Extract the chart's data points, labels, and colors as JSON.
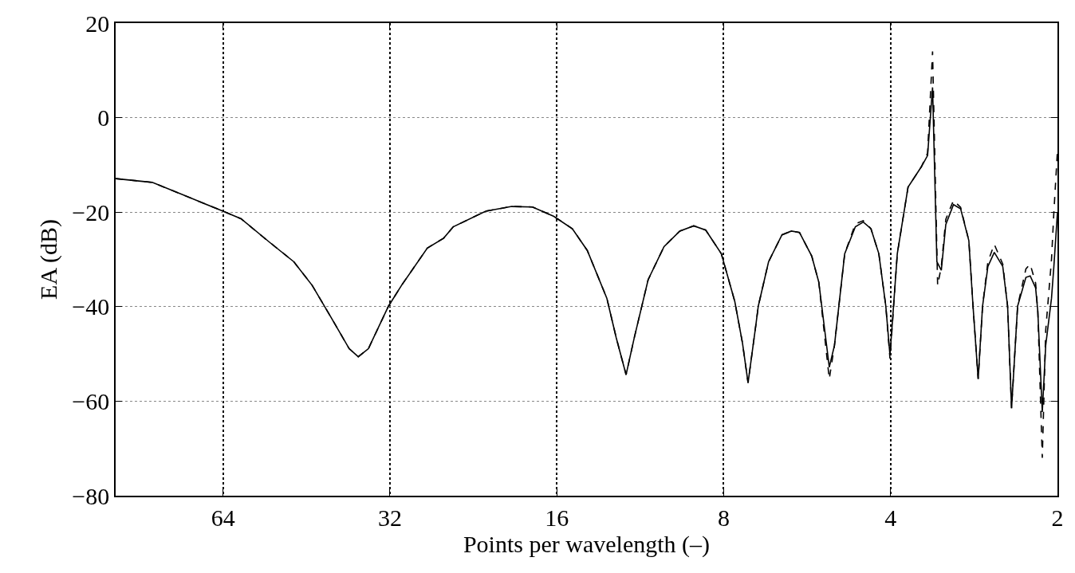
{
  "chart_data": {
    "type": "line",
    "xlabel": "Points per wavelength (–)",
    "ylabel": "EA (dB)",
    "log": "x",
    "xlim": [
      100,
      2
    ],
    "xticks": [
      64,
      32,
      16,
      8,
      4,
      2
    ],
    "ylim": [
      -80,
      20
    ],
    "yticks": [
      -80,
      -60,
      -40,
      -20,
      0,
      20
    ],
    "grid": true,
    "marker": "none",
    "series": [
      {
        "color": "#000000",
        "line_style": "solid",
        "x": [
          100,
          85.9,
          75.4,
          64,
          59.4,
          52.6,
          47.7,
          44.2,
          40.9,
          37.9,
          36.5,
          35.0,
          32.2,
          30.5,
          27.4,
          25.6,
          24.6,
          21.5,
          19.3,
          17.7,
          16.2,
          15.0,
          14.1,
          13.0,
          12.5,
          12.0,
          11.6,
          10.95,
          10.25,
          9.6,
          9.06,
          8.62,
          8.08,
          7.64,
          7.4,
          7.23,
          7.0,
          6.93,
          6.64,
          6.28,
          6.04,
          5.84,
          5.55,
          5.39,
          5.16,
          5.05,
          4.84,
          4.63,
          4.48,
          4.34,
          4.2,
          4.08,
          4.01,
          3.89,
          3.72,
          3.52,
          3.43,
          3.36,
          3.3,
          3.24,
          3.18,
          3.08,
          2.99,
          2.89,
          2.84,
          2.78,
          2.73,
          2.67,
          2.6,
          2.51,
          2.46,
          2.42,
          2.36,
          2.28,
          2.24,
          2.19,
          2.17,
          2.13,
          2.1,
          2.05,
          2.03,
          2.0
        ],
        "values": [
          -12.9,
          -13.7,
          -16.4,
          -19.8,
          -21.4,
          -26.5,
          -30.5,
          -35.5,
          -42.2,
          -48.9,
          -50.6,
          -48.9,
          -39.9,
          -35.5,
          -27.6,
          -25.5,
          -23.1,
          -19.8,
          -18.8,
          -18.9,
          -20.9,
          -23.5,
          -28.1,
          -38.2,
          -46.6,
          -54.4,
          -46.6,
          -34.3,
          -27.3,
          -24.0,
          -22.9,
          -23.8,
          -28.8,
          -38.9,
          -47.7,
          -56.1,
          -43.9,
          -39.9,
          -30.5,
          -24.8,
          -24.0,
          -24.3,
          -29.3,
          -34.8,
          -52.8,
          -48.2,
          -28.8,
          -23.1,
          -22.1,
          -23.5,
          -28.8,
          -39.9,
          -50.3,
          -28.8,
          -14.7,
          -10.4,
          -8.0,
          6.4,
          -30.5,
          -32.3,
          -22.6,
          -18.4,
          -19.3,
          -26.0,
          -39.9,
          -55.3,
          -39.9,
          -31.5,
          -28.5,
          -31.5,
          -39.9,
          -61.5,
          -39.9,
          -33.8,
          -33.5,
          -36.0,
          -41.0,
          -62.3,
          -48.2,
          -38.2,
          -31.5,
          -20.0
        ]
      },
      {
        "color": "#000000",
        "line_style": "dashed",
        "x": [
          100,
          85.9,
          75.4,
          64,
          59.4,
          52.6,
          47.7,
          44.2,
          40.9,
          37.9,
          36.5,
          35.0,
          32.2,
          30.5,
          27.4,
          25.6,
          24.6,
          21.5,
          19.3,
          17.7,
          16.2,
          15.0,
          14.1,
          13.0,
          12.5,
          12.0,
          11.6,
          10.95,
          10.25,
          9.6,
          9.06,
          8.62,
          8.08,
          7.64,
          7.4,
          7.23,
          7.0,
          6.93,
          6.64,
          6.28,
          6.04,
          5.84,
          5.55,
          5.39,
          5.16,
          5.05,
          4.84,
          4.63,
          4.48,
          4.34,
          4.2,
          4.08,
          4.01,
          3.89,
          3.72,
          3.52,
          3.43,
          3.36,
          3.29,
          3.24,
          3.18,
          3.08,
          2.99,
          2.89,
          2.84,
          2.78,
          2.73,
          2.67,
          2.6,
          2.51,
          2.46,
          2.42,
          2.36,
          2.28,
          2.24,
          2.19,
          2.17,
          2.13,
          2.1,
          2.05,
          2.03,
          2.0
        ],
        "values": [
          -12.9,
          -13.7,
          -16.4,
          -19.8,
          -21.4,
          -26.5,
          -30.5,
          -35.5,
          -42.2,
          -48.9,
          -50.6,
          -48.9,
          -39.9,
          -35.5,
          -27.6,
          -25.5,
          -23.1,
          -19.8,
          -18.8,
          -18.9,
          -20.9,
          -23.5,
          -28.1,
          -38.2,
          -46.6,
          -54.4,
          -46.6,
          -34.3,
          -27.3,
          -24.0,
          -22.9,
          -23.8,
          -28.8,
          -38.9,
          -47.7,
          -56.1,
          -43.9,
          -39.9,
          -30.5,
          -24.8,
          -24.0,
          -24.3,
          -29.3,
          -34.8,
          -55.3,
          -48.2,
          -28.8,
          -22.5,
          -21.8,
          -23.5,
          -28.8,
          -39.9,
          -51.0,
          -28.8,
          -14.7,
          -10.4,
          -7.5,
          14.0,
          -35.5,
          -31.5,
          -21.5,
          -17.5,
          -19.0,
          -26.0,
          -39.9,
          -55.3,
          -39.9,
          -30.5,
          -26.8,
          -31.0,
          -39.9,
          -61.5,
          -39.9,
          -32.0,
          -31.0,
          -35.0,
          -41.0,
          -72.0,
          -45.0,
          -30.0,
          -20.0,
          -7.0
        ]
      }
    ]
  }
}
